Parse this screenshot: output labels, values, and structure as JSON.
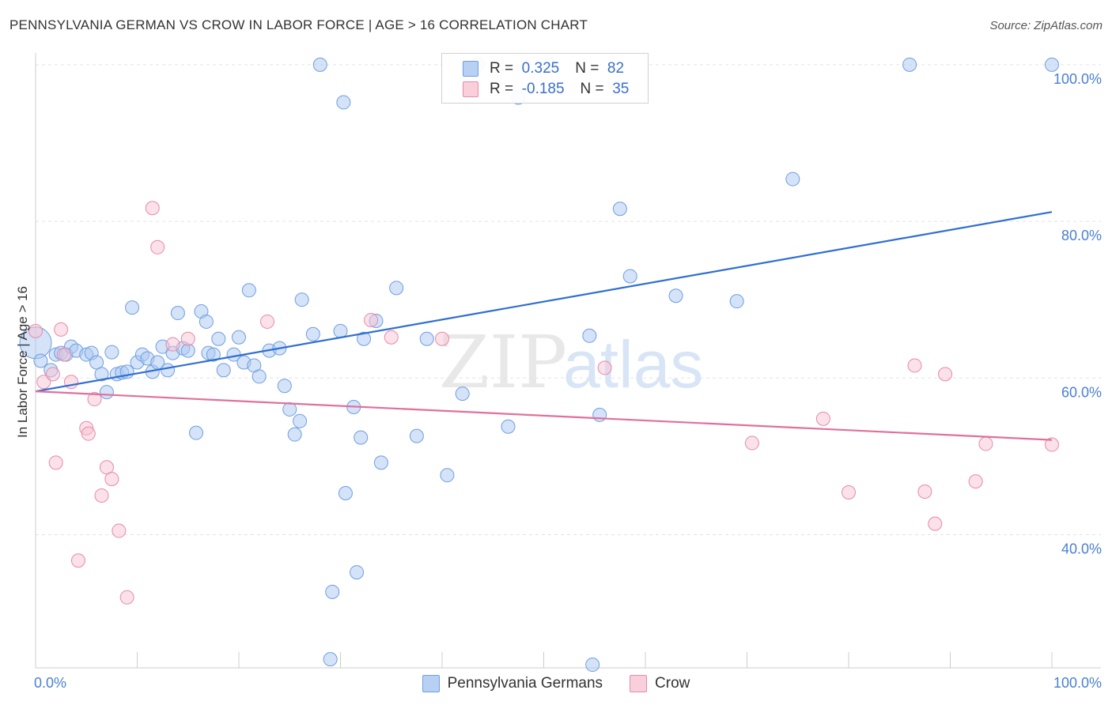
{
  "title": "PENNSYLVANIA GERMAN VS CROW IN LABOR FORCE | AGE > 16 CORRELATION CHART",
  "source": "Source: ZipAtlas.com",
  "watermark": {
    "zip": "ZIP",
    "atlas": "atlas"
  },
  "legend_top": {
    "r_label": "R =",
    "n_label": "N =",
    "rows": [
      {
        "r": "0.325",
        "n": "82"
      },
      {
        "r": "-0.185",
        "n": "35"
      }
    ]
  },
  "chart_data": {
    "type": "scatter",
    "title": "PENNSYLVANIA GERMAN VS CROW IN LABOR FORCE | AGE > 16 CORRELATION CHART",
    "xlabel": "",
    "ylabel": "In Labor Force | Age > 16",
    "xlim": [
      0,
      100
    ],
    "ylim": [
      23,
      101.5
    ],
    "x_tick_labels": [
      "0.0%",
      "100.0%"
    ],
    "y_ticks": [
      40,
      60,
      80,
      100
    ],
    "y_tick_labels": [
      "40.0%",
      "60.0%",
      "80.0%",
      "100.0%"
    ],
    "grid": true,
    "legend_position": "top-center",
    "series": [
      {
        "name": "Pennsylvania Germans",
        "color": "#a9c8f2",
        "stroke": "#6f9ee0",
        "line_color": "#2f6fd0",
        "r": 0.325,
        "n": 82,
        "trend": [
          [
            0,
            58.3
          ],
          [
            100,
            81.2
          ]
        ],
        "points": [
          [
            0,
            64.5
          ],
          [
            0.5,
            62.2
          ],
          [
            1.5,
            61.0
          ],
          [
            2.0,
            63.0
          ],
          [
            2.5,
            63.2
          ],
          [
            3.0,
            63.0
          ],
          [
            3.5,
            64.0
          ],
          [
            4.0,
            63.5
          ],
          [
            5.0,
            63.0
          ],
          [
            5.5,
            63.2
          ],
          [
            6.0,
            62.0
          ],
          [
            6.5,
            60.5
          ],
          [
            7.0,
            58.2
          ],
          [
            7.5,
            63.3
          ],
          [
            8.0,
            60.5
          ],
          [
            8.5,
            60.7
          ],
          [
            9.0,
            60.8
          ],
          [
            9.5,
            69.0
          ],
          [
            10.0,
            62.0
          ],
          [
            10.5,
            63.0
          ],
          [
            11.0,
            62.5
          ],
          [
            11.5,
            60.8
          ],
          [
            12.0,
            62.0
          ],
          [
            12.5,
            64.0
          ],
          [
            13.0,
            61.0
          ],
          [
            13.5,
            63.2
          ],
          [
            14.0,
            68.3
          ],
          [
            14.5,
            63.8
          ],
          [
            15.0,
            63.5
          ],
          [
            15.8,
            53.0
          ],
          [
            16.3,
            68.5
          ],
          [
            16.8,
            67.2
          ],
          [
            17.0,
            63.2
          ],
          [
            17.5,
            63.0
          ],
          [
            18.0,
            65.0
          ],
          [
            18.5,
            61.0
          ],
          [
            19.5,
            63.0
          ],
          [
            20.0,
            65.2
          ],
          [
            20.5,
            62.0
          ],
          [
            21.0,
            71.2
          ],
          [
            21.5,
            61.6
          ],
          [
            22.0,
            60.2
          ],
          [
            23.0,
            63.5
          ],
          [
            24.0,
            63.8
          ],
          [
            24.5,
            59.0
          ],
          [
            25.0,
            56.0
          ],
          [
            25.5,
            52.8
          ],
          [
            26.0,
            54.5
          ],
          [
            26.2,
            70.0
          ],
          [
            27.3,
            65.6
          ],
          [
            28.0,
            100.0
          ],
          [
            29.0,
            24.1
          ],
          [
            29.2,
            32.7
          ],
          [
            30.0,
            66.0
          ],
          [
            30.3,
            95.2
          ],
          [
            30.5,
            45.3
          ],
          [
            31.3,
            56.3
          ],
          [
            31.6,
            35.2
          ],
          [
            32.0,
            52.4
          ],
          [
            32.3,
            65.0
          ],
          [
            33.5,
            67.3
          ],
          [
            34.0,
            49.2
          ],
          [
            35.5,
            71.5
          ],
          [
            37.5,
            52.6
          ],
          [
            38.5,
            65.0
          ],
          [
            40.5,
            47.6
          ],
          [
            42.0,
            58.0
          ],
          [
            43.5,
            100.0
          ],
          [
            46.5,
            53.8
          ],
          [
            47.5,
            95.8
          ],
          [
            50.5,
            100.0
          ],
          [
            54.5,
            65.4
          ],
          [
            54.8,
            23.4
          ],
          [
            55.5,
            55.3
          ],
          [
            57.5,
            81.6
          ],
          [
            58.5,
            73.0
          ],
          [
            63.0,
            70.5
          ],
          [
            69.0,
            69.8
          ],
          [
            74.5,
            85.4
          ],
          [
            86.0,
            100.0
          ],
          [
            100.0,
            100.0
          ]
        ]
      },
      {
        "name": "Crow",
        "color": "#f8c3d3",
        "stroke": "#e88aa8",
        "line_color": "#e0709a",
        "r": -0.185,
        "n": 35,
        "trend": [
          [
            0,
            58.3
          ],
          [
            100,
            52.1
          ]
        ],
        "points": [
          [
            0.0,
            66.0
          ],
          [
            0.8,
            59.5
          ],
          [
            1.7,
            60.5
          ],
          [
            2.0,
            49.2
          ],
          [
            2.5,
            66.2
          ],
          [
            2.8,
            63.0
          ],
          [
            3.5,
            59.5
          ],
          [
            4.2,
            36.7
          ],
          [
            5.0,
            53.6
          ],
          [
            5.2,
            52.9
          ],
          [
            5.8,
            57.3
          ],
          [
            6.5,
            45.0
          ],
          [
            7.0,
            48.6
          ],
          [
            7.5,
            47.1
          ],
          [
            8.2,
            40.5
          ],
          [
            9.0,
            32.0
          ],
          [
            11.5,
            81.7
          ],
          [
            12.0,
            76.7
          ],
          [
            13.5,
            64.3
          ],
          [
            15.0,
            65.0
          ],
          [
            22.8,
            67.2
          ],
          [
            33.0,
            67.4
          ],
          [
            35.0,
            65.2
          ],
          [
            40.0,
            65.0
          ],
          [
            56.0,
            61.3
          ],
          [
            70.5,
            51.7
          ],
          [
            77.5,
            54.8
          ],
          [
            80.0,
            45.4
          ],
          [
            86.5,
            61.6
          ],
          [
            87.5,
            45.5
          ],
          [
            88.5,
            41.4
          ],
          [
            89.5,
            60.5
          ],
          [
            92.5,
            46.8
          ],
          [
            93.5,
            51.6
          ],
          [
            100.0,
            51.5
          ]
        ]
      }
    ]
  }
}
